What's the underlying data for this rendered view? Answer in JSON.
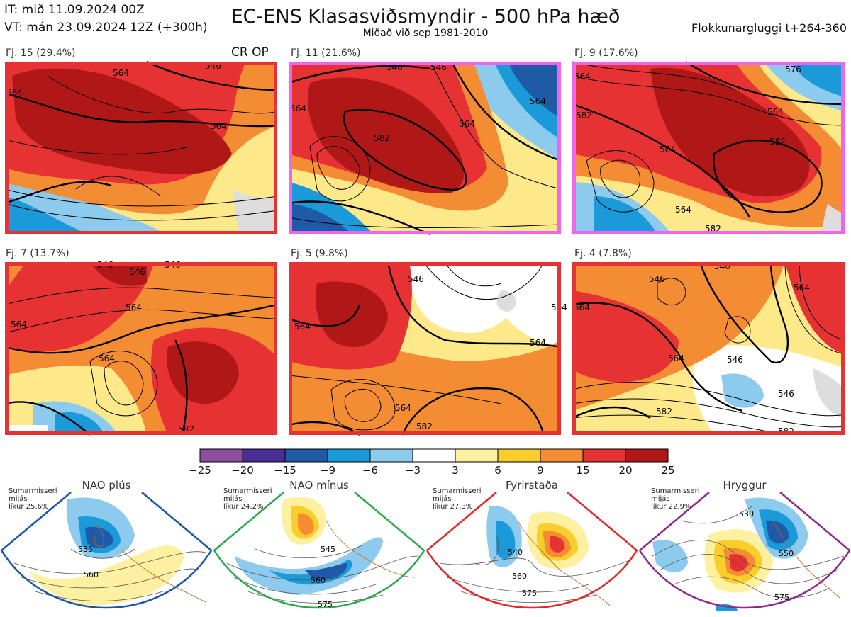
{
  "header": {
    "initial_time": "IT: mið 11.09.2024 00Z",
    "valid_time": "VT: mán 23.09.2024 12Z  (+300h)",
    "title": "EC-ENS Klasasviðsmyndir - 500 hPa hæð",
    "subtitle": "Miðað við sep 1981-2010",
    "cluster_window": "Flokkunargluggi t+264-360"
  },
  "panels": [
    {
      "label": "Fj. 15 (29.4%)",
      "extra": "CR OP",
      "border_color": "#e63232",
      "contours": [
        "564",
        "546",
        "564",
        "564"
      ]
    },
    {
      "label": "Fj. 11 (21.6%)",
      "extra": "",
      "border_color": "#ee66ee",
      "contours": [
        "546",
        "564",
        "564",
        "582",
        "546",
        "564"
      ]
    },
    {
      "label": "Fj. 9 (17.6%)",
      "extra": "",
      "border_color": "#ee66ee",
      "contours": [
        "564",
        "576",
        "582",
        "564",
        "564",
        "582",
        "564",
        "582"
      ]
    },
    {
      "label": "Fj. 7 (13.7%)",
      "extra": "",
      "border_color": "#e63232",
      "contours": [
        "546",
        "546",
        "546",
        "564",
        "564",
        "564",
        "582"
      ]
    },
    {
      "label": "Fj. 5 (9.8%)",
      "extra": "",
      "border_color": "#e63232",
      "contours": [
        "546",
        "564",
        "564",
        "564",
        "564",
        "582"
      ]
    },
    {
      "label": "Fj. 4 (7.8%)",
      "extra": "",
      "border_color": "#e63232",
      "contours": [
        "546",
        "564",
        "564",
        "564",
        "546",
        "546",
        "582",
        "582",
        "546"
      ]
    }
  ],
  "colorbar": {
    "ticks": [
      "−25",
      "−20",
      "−15",
      "−9",
      "−6",
      "−3",
      "3",
      "6",
      "9",
      "15",
      "20",
      "25"
    ],
    "colors": [
      "#8c4fa0",
      "#4b2d96",
      "#1f5aa6",
      "#1a9ad8",
      "#8ccbee",
      "#ffffff",
      "#fdf0a0",
      "#f9cd2a",
      "#f48c34",
      "#e63232",
      "#b01818"
    ]
  },
  "regimes": [
    {
      "name": "NAO plús",
      "note": "Sumarmisseri\nmijás\nlíkur 25,6%",
      "color": "#1a55a8",
      "labels": [
        "535",
        "560"
      ]
    },
    {
      "name": "NAO mínus",
      "note": "Sumarmisseri\nmijás\nlíkur 24,2%",
      "color": "#2aaa4a",
      "labels": [
        "545",
        "560",
        "575"
      ]
    },
    {
      "name": "Fyrirstaða",
      "note": "Sumarmisseri\nmijás\nlíkur 27,3%",
      "color": "#e02828",
      "labels": [
        "540",
        "560",
        "575"
      ]
    },
    {
      "name": "Hryggur",
      "note": "Sumarmisseri\nmijás\nlíkur 22,9%",
      "color": "#ee66ee",
      "labels": [
        "530",
        "550",
        "575"
      ]
    }
  ]
}
